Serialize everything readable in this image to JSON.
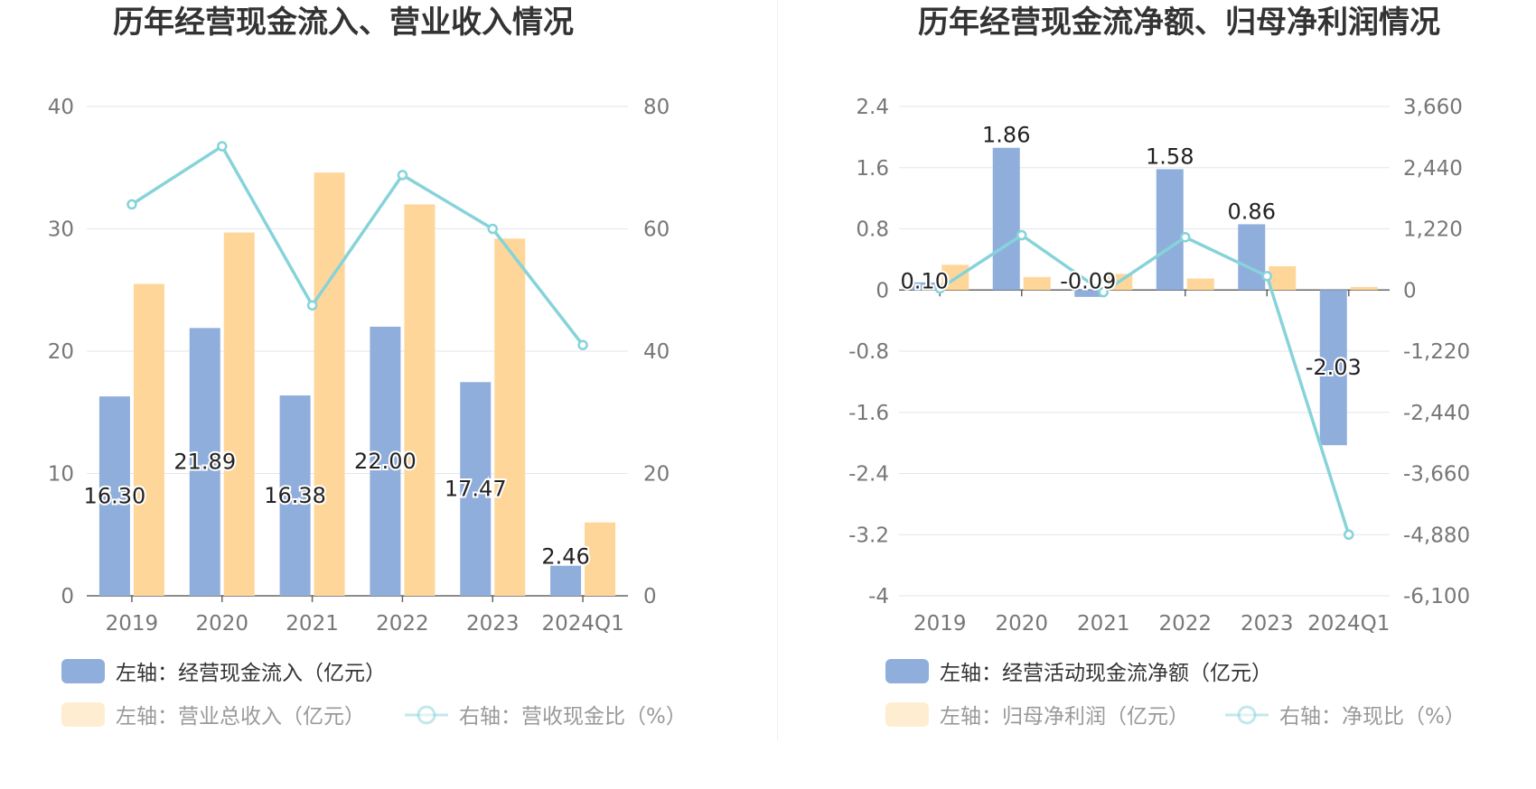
{
  "chart_data": [
    {
      "type": "bar",
      "title": "历年经营现金流入、营业收入情况",
      "categories": [
        "2019",
        "2020",
        "2021",
        "2022",
        "2023",
        "2024Q1"
      ],
      "left_axis": {
        "min": 0,
        "max": 40,
        "ticks": [
          "0",
          "10",
          "20",
          "30",
          "40"
        ]
      },
      "right_axis": {
        "min": 0,
        "max": 80,
        "ticks": [
          "0",
          "20",
          "40",
          "60",
          "80"
        ]
      },
      "grid": true,
      "series": [
        {
          "name": "左轴：经营现金流入（亿元）",
          "kind": "bar",
          "axis": "left",
          "color": "#8FAEDB",
          "values": [
            16.3,
            21.89,
            16.38,
            22.0,
            17.47,
            2.46
          ],
          "labels": [
            "16.30",
            "21.89",
            "16.38",
            "22.00",
            "17.47",
            "2.46"
          ]
        },
        {
          "name": "左轴：营业总收入（亿元）",
          "kind": "bar",
          "axis": "left",
          "color": "#FFD699",
          "values": [
            25.5,
            29.7,
            34.6,
            32.0,
            29.2,
            6.0
          ]
        },
        {
          "name": "右轴：营收现金比（%）",
          "kind": "line",
          "axis": "right",
          "color": "#86D3DA",
          "values": [
            64.0,
            73.5,
            47.5,
            68.8,
            60.0,
            41.0
          ]
        }
      ],
      "legend_position": "bottom"
    },
    {
      "type": "bar",
      "title": "历年经营现金流净额、归母净利润情况",
      "categories": [
        "2019",
        "2020",
        "2021",
        "2022",
        "2023",
        "2024Q1"
      ],
      "left_axis": {
        "min": -4,
        "max": 2.4,
        "ticks": [
          "-4",
          "-3.2",
          "-2.4",
          "-1.6",
          "-0.8",
          "0",
          "0.8",
          "1.6",
          "2.4"
        ]
      },
      "right_axis": {
        "min": -6100,
        "max": 3660,
        "ticks": [
          "-6,100",
          "-4,880",
          "-3,660",
          "-2,440",
          "-1,220",
          "0",
          "1,220",
          "2,440",
          "3,660"
        ]
      },
      "grid": true,
      "series": [
        {
          "name": "左轴：经营活动现金流净额（亿元）",
          "kind": "bar",
          "axis": "left",
          "color": "#8FAEDB",
          "values": [
            0.1,
            1.86,
            -0.09,
            1.58,
            0.86,
            -2.03
          ],
          "labels": [
            "0.10",
            "1.86",
            "-0.09",
            "1.58",
            "0.86",
            "-2.03"
          ]
        },
        {
          "name": "左轴：归母净利润（亿元）",
          "kind": "bar",
          "axis": "left",
          "color": "#FFD699",
          "values": [
            0.33,
            0.17,
            0.21,
            0.15,
            0.31,
            0.04
          ]
        },
        {
          "name": "右轴：净现比（%）",
          "kind": "line",
          "axis": "right",
          "color": "#86D3DA",
          "values": [
            30,
            1094,
            -43,
            1053,
            277,
            -4880
          ]
        }
      ],
      "legend_position": "bottom"
    }
  ]
}
